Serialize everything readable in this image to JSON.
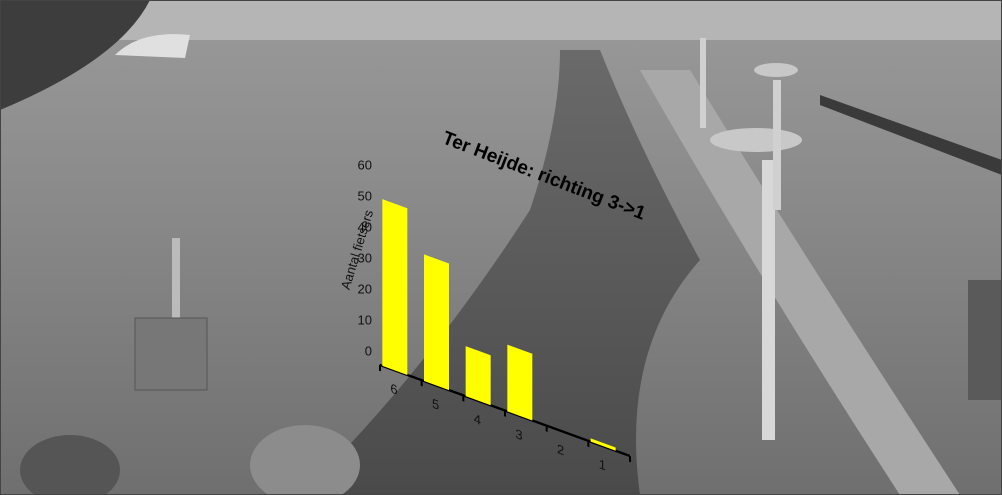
{
  "chart_data": {
    "type": "bar",
    "title": "Ter Heijde: richting 3->1",
    "y_label": "Aantal fietsers",
    "categories": [
      "6",
      "5",
      "4",
      "3",
      "2",
      "1"
    ],
    "values": [
      50,
      38,
      15,
      20,
      0,
      1
    ],
    "color": "#ffff00",
    "ylim": [
      0,
      60
    ],
    "yticks": [
      0,
      10,
      20,
      30,
      40,
      50,
      60
    ]
  }
}
